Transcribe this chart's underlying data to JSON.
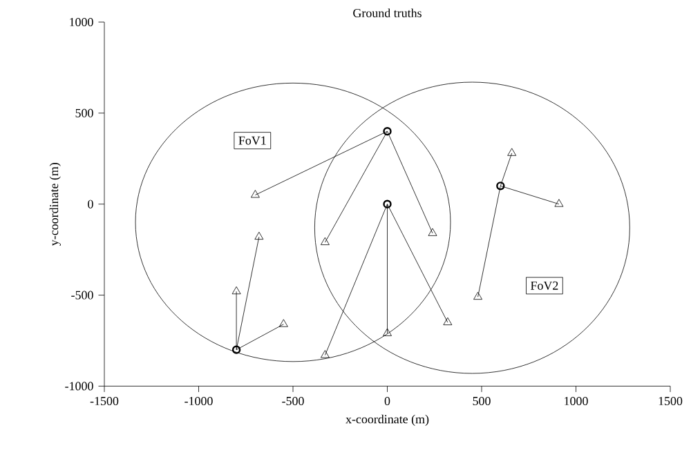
{
  "chart_data": {
    "type": "line",
    "title": "Ground truths",
    "xlabel": "x-coordinate (m)",
    "ylabel": "y-coordinate (m)",
    "xlim": [
      -1500,
      1500
    ],
    "ylim": [
      -1000,
      1000
    ],
    "xticks": [
      -1500,
      -1000,
      -500,
      0,
      500,
      1000,
      1500
    ],
    "yticks": [
      -1000,
      -500,
      0,
      500,
      1000
    ],
    "annotations": [
      {
        "text": "FoV1",
        "x": -715,
        "y": 349
      },
      {
        "text": "FoV2",
        "x": 833,
        "y": -448
      }
    ],
    "series": [
      {
        "marker": "none",
        "color": "#000000",
        "x": [
          -700,
          0
        ],
        "values": [
          50,
          400
        ]
      },
      {
        "marker": "none",
        "color": "#000000",
        "x": [
          -330,
          0
        ],
        "values": [
          -210,
          400
        ]
      },
      {
        "marker": "none",
        "color": "#000000",
        "x": [
          0,
          240
        ],
        "values": [
          400,
          -160
        ]
      },
      {
        "marker": "none",
        "color": "#000000",
        "x": [
          -330,
          0
        ],
        "values": [
          -830,
          0
        ]
      },
      {
        "marker": "none",
        "color": "#000000",
        "x": [
          0,
          0
        ],
        "values": [
          0,
          -710
        ]
      },
      {
        "marker": "none",
        "color": "#000000",
        "x": [
          0,
          320
        ],
        "values": [
          0,
          -650
        ]
      },
      {
        "marker": "none",
        "color": "#000000",
        "x": [
          -800,
          -680
        ],
        "values": [
          -800,
          -180
        ]
      },
      {
        "marker": "none",
        "color": "#000000",
        "x": [
          -800,
          -800
        ],
        "values": [
          -800,
          -480
        ]
      },
      {
        "marker": "none",
        "color": "#000000",
        "x": [
          -800,
          -550
        ],
        "values": [
          -800,
          -660
        ]
      },
      {
        "marker": "none",
        "color": "#000000",
        "x": [
          600,
          660
        ],
        "values": [
          100,
          280
        ]
      },
      {
        "marker": "none",
        "color": "#000000",
        "x": [
          600,
          910
        ],
        "values": [
          100,
          0
        ]
      },
      {
        "marker": "none",
        "color": "#000000",
        "x": [
          480,
          600
        ],
        "values": [
          -510,
          100
        ]
      },
      {
        "type": "scatter",
        "marker": "triangle",
        "color": "#000000",
        "x": [
          -700,
          -680,
          -800,
          -550,
          -330,
          -330,
          0,
          240,
          320,
          660,
          910,
          480
        ],
        "values": [
          50,
          -180,
          -480,
          -660,
          -210,
          -830,
          -710,
          -160,
          -650,
          280,
          0,
          -510
        ]
      },
      {
        "type": "scatter",
        "marker": "circle",
        "color": "#000000",
        "x": [
          0,
          0,
          -800,
          600
        ],
        "values": [
          400,
          0,
          -800,
          100
        ]
      }
    ]
  }
}
